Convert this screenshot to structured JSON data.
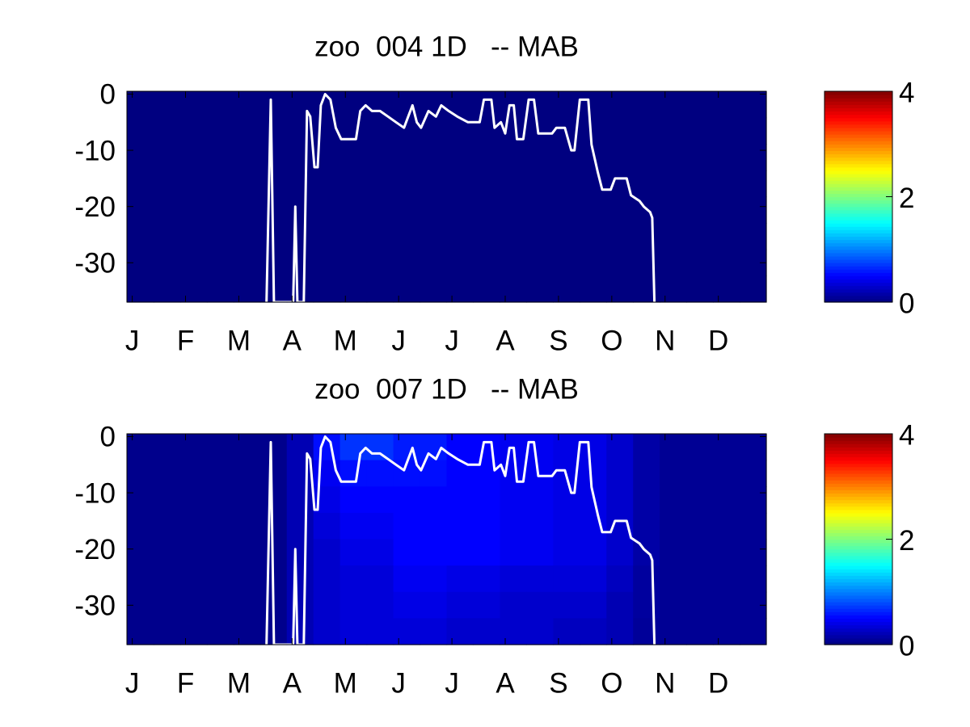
{
  "chart_data": [
    {
      "type": "heatmap",
      "title": "zoo  004 1D   -- MAB",
      "colormap": "jet",
      "xlim": [
        -0.1,
        11.9
      ],
      "xticks": [
        {
          "value": 0,
          "label": "J"
        },
        {
          "value": 1,
          "label": "F"
        },
        {
          "value": 2,
          "label": "M"
        },
        {
          "value": 3,
          "label": "A"
        },
        {
          "value": 4,
          "label": "M"
        },
        {
          "value": 5,
          "label": "J"
        },
        {
          "value": 6,
          "label": "J"
        },
        {
          "value": 7,
          "label": "A"
        },
        {
          "value": 8,
          "label": "S"
        },
        {
          "value": 9,
          "label": "O"
        },
        {
          "value": 10,
          "label": "N"
        },
        {
          "value": 11,
          "label": "D"
        }
      ],
      "ylim": [
        -37,
        0.5
      ],
      "yticks": [
        0,
        -10,
        -20,
        -30
      ],
      "clim": [
        0,
        4
      ],
      "cticks": [
        0,
        2,
        4
      ],
      "z": [
        [
          0,
          0,
          0,
          0,
          0,
          0,
          0,
          0,
          0,
          0,
          0,
          0,
          0,
          0,
          0,
          0,
          0,
          0,
          0,
          0,
          0,
          0,
          0,
          0
        ],
        [
          0,
          0,
          0,
          0,
          0,
          0,
          0,
          0,
          0,
          0,
          0,
          0,
          0,
          0,
          0,
          0,
          0,
          0,
          0,
          0,
          0,
          0,
          0,
          0
        ],
        [
          0,
          0,
          0,
          0,
          0,
          0,
          0,
          0,
          0,
          0,
          0,
          0,
          0,
          0,
          0,
          0,
          0,
          0,
          0,
          0,
          0,
          0,
          0,
          0
        ],
        [
          0,
          0,
          0,
          0,
          0,
          0,
          0,
          0,
          0,
          0,
          0,
          0,
          0,
          0,
          0,
          0,
          0,
          0,
          0,
          0,
          0,
          0,
          0,
          0
        ],
        [
          0,
          0,
          0,
          0,
          0,
          0,
          0,
          0,
          0,
          0,
          0,
          0,
          0,
          0,
          0,
          0,
          0,
          0,
          0,
          0,
          0,
          0,
          0,
          0
        ],
        [
          0,
          0,
          0,
          0,
          0,
          0,
          0,
          0,
          0,
          0,
          0,
          0,
          0,
          0,
          0,
          0,
          0,
          0,
          0,
          0,
          0,
          0,
          0,
          0
        ],
        [
          0,
          0,
          0,
          0,
          0,
          0,
          0,
          0,
          0,
          0,
          0,
          0,
          0,
          0,
          0,
          0,
          0,
          0,
          0,
          0,
          0,
          0,
          0,
          0
        ],
        [
          0,
          0,
          0,
          0,
          0,
          0,
          0,
          0,
          0,
          0,
          0,
          0,
          0,
          0,
          0,
          0,
          0,
          0,
          0,
          0,
          0,
          0,
          0,
          0
        ]
      ],
      "line": {
        "color": "#ffffff",
        "x": [
          2.52,
          2.6,
          2.66,
          3.02,
          3.06,
          3.1,
          3.22,
          3.28,
          3.34,
          3.42,
          3.48,
          3.54,
          3.62,
          3.72,
          3.82,
          3.92,
          4.2,
          4.28,
          4.38,
          4.5,
          4.65,
          4.8,
          4.95,
          5.1,
          5.18,
          5.26,
          5.34,
          5.42,
          5.56,
          5.7,
          5.8,
          5.94,
          6.1,
          6.3,
          6.52,
          6.6,
          6.74,
          6.8,
          6.92,
          7.0,
          7.08,
          7.16,
          7.22,
          7.34,
          7.44,
          7.54,
          7.62,
          7.88,
          7.96,
          8.12,
          8.24,
          8.3,
          8.4,
          8.56,
          8.62,
          8.74,
          8.82,
          8.98,
          9.06,
          9.28,
          9.36,
          9.52,
          9.6,
          9.72,
          9.76,
          9.8
        ],
        "values": [
          -37,
          -1,
          -37,
          -37,
          -20,
          -37,
          -37,
          -3,
          -4,
          -13,
          -13,
          -2,
          0,
          -1,
          -6,
          -8,
          -8,
          -3,
          -2,
          -3,
          -3,
          -4,
          -5,
          -6,
          -4,
          -2,
          -5,
          -6,
          -3,
          -4,
          -2,
          -3,
          -4,
          -5,
          -5,
          -1,
          -1,
          -6,
          -5,
          -7,
          -2,
          -2,
          -8,
          -8,
          -1,
          -1,
          -7,
          -7,
          -6,
          -6,
          -10,
          -10,
          -1,
          -1,
          -9,
          -14,
          -17,
          -17,
          -15,
          -15,
          -18,
          -19,
          -20,
          -21,
          -22,
          -37
        ]
      }
    },
    {
      "type": "heatmap",
      "title": "zoo  007 1D   -- MAB",
      "colormap": "jet",
      "xlim": [
        -0.1,
        11.9
      ],
      "xticks": [
        {
          "value": 0,
          "label": "J"
        },
        {
          "value": 1,
          "label": "F"
        },
        {
          "value": 2,
          "label": "M"
        },
        {
          "value": 3,
          "label": "A"
        },
        {
          "value": 4,
          "label": "M"
        },
        {
          "value": 5,
          "label": "J"
        },
        {
          "value": 6,
          "label": "J"
        },
        {
          "value": 7,
          "label": "A"
        },
        {
          "value": 8,
          "label": "S"
        },
        {
          "value": 9,
          "label": "O"
        },
        {
          "value": 10,
          "label": "N"
        },
        {
          "value": 11,
          "label": "D"
        }
      ],
      "ylim": [
        -37,
        0.5
      ],
      "yticks": [
        0,
        -10,
        -20,
        -30
      ],
      "clim": [
        0,
        4
      ],
      "cticks": [
        0,
        2,
        4
      ],
      "z": [
        [
          0.05,
          0.05,
          0.05,
          0.05,
          0.05,
          0.05,
          0.2,
          0.55,
          0.7,
          0.7,
          0.6,
          0.6,
          0.5,
          0.5,
          0.45,
          0.45,
          0.4,
          0.4,
          0.3,
          0.15,
          0.08,
          0.08,
          0.08,
          0.08
        ],
        [
          0.05,
          0.05,
          0.05,
          0.05,
          0.05,
          0.05,
          0.2,
          0.45,
          0.55,
          0.55,
          0.55,
          0.55,
          0.5,
          0.5,
          0.45,
          0.45,
          0.4,
          0.4,
          0.3,
          0.15,
          0.08,
          0.08,
          0.08,
          0.08
        ],
        [
          0.05,
          0.05,
          0.05,
          0.05,
          0.05,
          0.05,
          0.2,
          0.4,
          0.5,
          0.5,
          0.5,
          0.5,
          0.5,
          0.5,
          0.45,
          0.45,
          0.4,
          0.4,
          0.3,
          0.15,
          0.08,
          0.08,
          0.08,
          0.08
        ],
        [
          0.05,
          0.05,
          0.05,
          0.05,
          0.05,
          0.05,
          0.2,
          0.35,
          0.45,
          0.45,
          0.5,
          0.5,
          0.5,
          0.5,
          0.45,
          0.45,
          0.4,
          0.4,
          0.3,
          0.15,
          0.08,
          0.08,
          0.08,
          0.08
        ],
        [
          0.05,
          0.05,
          0.05,
          0.05,
          0.05,
          0.05,
          0.2,
          0.3,
          0.4,
          0.4,
          0.5,
          0.5,
          0.5,
          0.5,
          0.45,
          0.45,
          0.4,
          0.4,
          0.3,
          0.15,
          0.08,
          0.08,
          0.08,
          0.08
        ],
        [
          0.05,
          0.05,
          0.05,
          0.05,
          0.05,
          0.05,
          0.2,
          0.3,
          0.35,
          0.35,
          0.45,
          0.45,
          0.4,
          0.4,
          0.35,
          0.35,
          0.35,
          0.35,
          0.25,
          0.12,
          0.08,
          0.08,
          0.08,
          0.08
        ],
        [
          0.05,
          0.05,
          0.05,
          0.05,
          0.05,
          0.05,
          0.2,
          0.3,
          0.35,
          0.35,
          0.4,
          0.4,
          0.35,
          0.35,
          0.3,
          0.3,
          0.3,
          0.3,
          0.2,
          0.12,
          0.08,
          0.08,
          0.08,
          0.08
        ],
        [
          0.05,
          0.05,
          0.05,
          0.05,
          0.05,
          0.05,
          0.2,
          0.3,
          0.35,
          0.35,
          0.35,
          0.35,
          0.3,
          0.3,
          0.3,
          0.3,
          0.25,
          0.25,
          0.2,
          0.1,
          0.08,
          0.08,
          0.08,
          0.08
        ]
      ],
      "line": {
        "color": "#ffffff",
        "x": [
          2.52,
          2.6,
          2.66,
          3.02,
          3.06,
          3.1,
          3.22,
          3.28,
          3.34,
          3.42,
          3.48,
          3.54,
          3.62,
          3.72,
          3.82,
          3.92,
          4.2,
          4.28,
          4.38,
          4.5,
          4.65,
          4.8,
          4.95,
          5.1,
          5.18,
          5.26,
          5.34,
          5.42,
          5.56,
          5.7,
          5.8,
          5.94,
          6.1,
          6.3,
          6.52,
          6.6,
          6.74,
          6.8,
          6.92,
          7.0,
          7.08,
          7.16,
          7.22,
          7.34,
          7.44,
          7.54,
          7.62,
          7.88,
          7.96,
          8.12,
          8.24,
          8.3,
          8.4,
          8.56,
          8.62,
          8.74,
          8.82,
          8.98,
          9.06,
          9.28,
          9.36,
          9.52,
          9.6,
          9.72,
          9.76,
          9.8
        ],
        "values": [
          -37,
          -1,
          -37,
          -37,
          -20,
          -37,
          -37,
          -3,
          -4,
          -13,
          -13,
          -2,
          0,
          -1,
          -6,
          -8,
          -8,
          -3,
          -2,
          -3,
          -3,
          -4,
          -5,
          -6,
          -4,
          -2,
          -5,
          -6,
          -3,
          -4,
          -2,
          -3,
          -4,
          -5,
          -5,
          -1,
          -1,
          -6,
          -5,
          -7,
          -2,
          -2,
          -8,
          -8,
          -1,
          -1,
          -7,
          -7,
          -6,
          -6,
          -10,
          -10,
          -1,
          -1,
          -9,
          -14,
          -17,
          -17,
          -15,
          -15,
          -18,
          -19,
          -20,
          -21,
          -22,
          -37
        ]
      }
    }
  ]
}
